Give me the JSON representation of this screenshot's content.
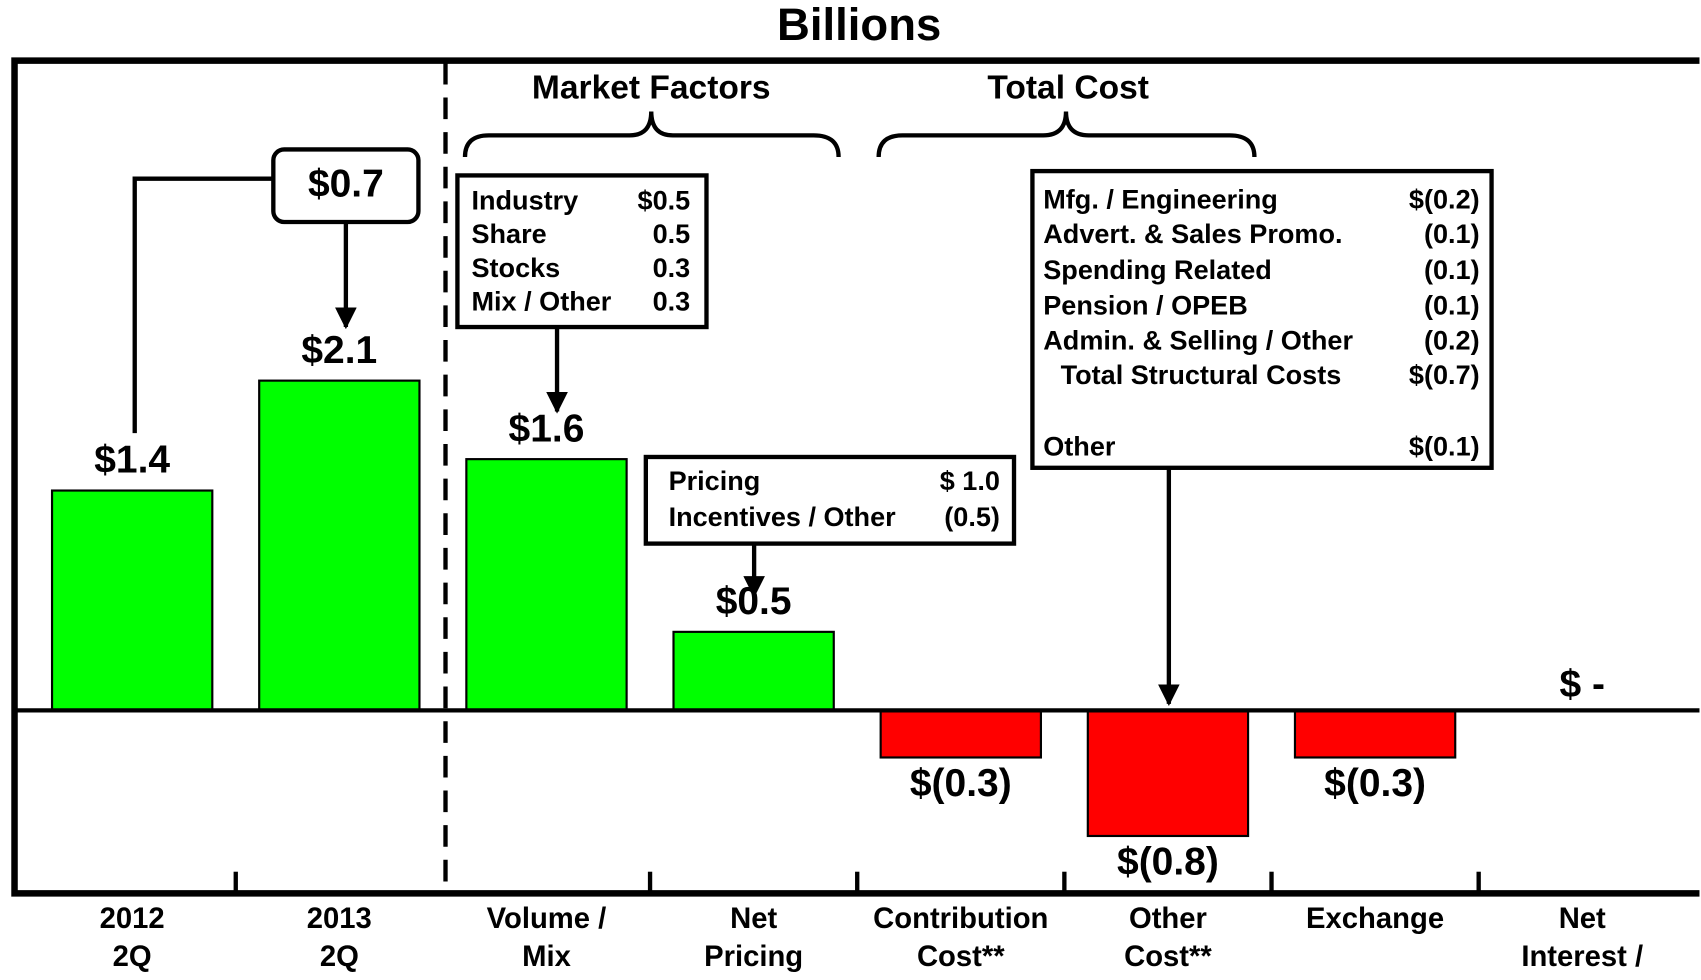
{
  "chart_data": {
    "type": "bar",
    "title": "Billions",
    "categories": [
      [
        "2012",
        "2Q"
      ],
      [
        "2013",
        "2Q"
      ],
      [
        "Volume /",
        "Mix"
      ],
      [
        "Net",
        "Pricing"
      ],
      [
        "Contribution",
        "Cost**"
      ],
      [
        "Other",
        "Cost**"
      ],
      [
        "Exchange"
      ],
      [
        "Net",
        "Interest /"
      ]
    ],
    "values": [
      1.4,
      2.1,
      1.6,
      0.5,
      -0.3,
      -0.8,
      -0.3,
      0
    ],
    "value_labels": [
      "$1.4",
      "$2.1",
      "$1.6",
      "$0.5",
      "$(0.3)",
      "$(0.8)",
      "$(0.3)",
      "$ -"
    ],
    "colors": [
      "#00ff00",
      "#00ff00",
      "#00ff00",
      "#00ff00",
      "#ff0000",
      "#ff0000",
      "#ff0000",
      "#ff0000"
    ],
    "groups": [
      "Market Factors",
      "Total Cost"
    ],
    "change_label": "$0.7",
    "volume_box": [
      [
        "Industry",
        "$0.5"
      ],
      [
        "Share",
        "0.5"
      ],
      [
        "Stocks",
        "0.3"
      ],
      [
        "Mix / Other",
        "0.3"
      ]
    ],
    "pricing_box": [
      [
        "Pricing",
        "$ 1.0"
      ],
      [
        "Incentives / Other",
        "(0.5)"
      ]
    ],
    "cost_box": [
      [
        "Mfg. / Engineering",
        "$(0.2)"
      ],
      [
        "Advert. & Sales Promo.",
        "(0.1)"
      ],
      [
        "Spending Related",
        "(0.1)"
      ],
      [
        "Pension / OPEB",
        "(0.1)"
      ],
      [
        "Admin. & Selling / Other",
        "(0.2)"
      ],
      [
        "Total Structural Costs",
        "$(0.7)"
      ],
      [
        "Other",
        "$(0.1)"
      ]
    ]
  }
}
